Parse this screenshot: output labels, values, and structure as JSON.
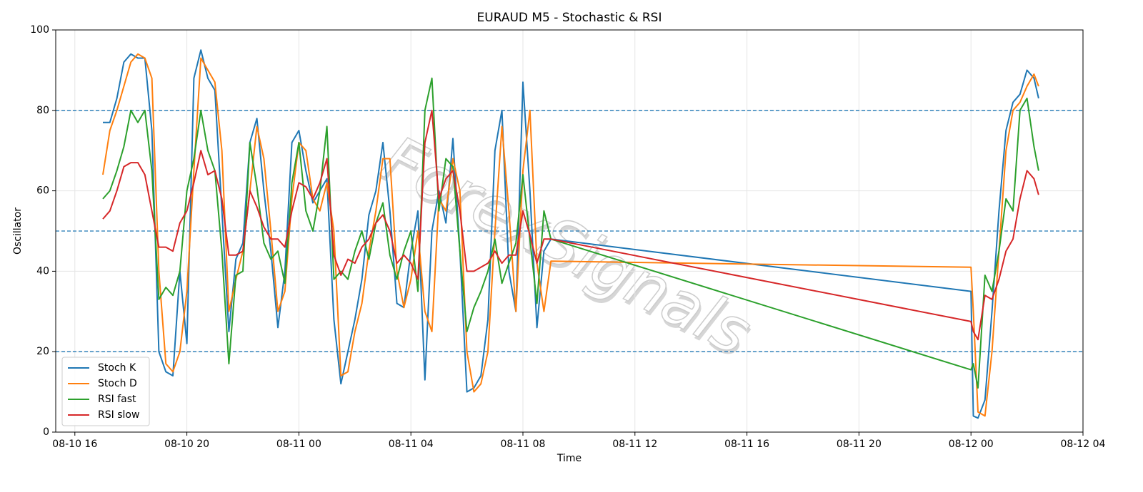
{
  "chart_data": {
    "type": "line",
    "title": "EURAUD M5 - Stochastic & RSI",
    "x_label": "Time",
    "y_label": "Oscillator",
    "watermark": "ForexSignals",
    "x": [
      "08-10 17:00",
      "08-10 17:15",
      "08-10 17:30",
      "08-10 17:45",
      "08-10 18:00",
      "08-10 18:15",
      "08-10 18:30",
      "08-10 18:45",
      "08-10 19:00",
      "08-10 19:15",
      "08-10 19:30",
      "08-10 19:45",
      "08-10 20:00",
      "08-10 20:15",
      "08-10 20:30",
      "08-10 20:45",
      "08-10 21:00",
      "08-10 21:15",
      "08-10 21:30",
      "08-10 21:45",
      "08-10 22:00",
      "08-10 22:15",
      "08-10 22:30",
      "08-10 22:45",
      "08-10 23:00",
      "08-10 23:15",
      "08-10 23:30",
      "08-10 23:45",
      "08-11 00:00",
      "08-11 00:15",
      "08-11 00:30",
      "08-11 00:45",
      "08-11 01:00",
      "08-11 01:15",
      "08-11 01:30",
      "08-11 01:45",
      "08-11 02:00",
      "08-11 02:15",
      "08-11 02:30",
      "08-11 02:45",
      "08-11 03:00",
      "08-11 03:15",
      "08-11 03:30",
      "08-11 03:45",
      "08-11 04:00",
      "08-11 04:15",
      "08-11 04:30",
      "08-11 04:45",
      "08-11 05:00",
      "08-11 05:15",
      "08-11 05:30",
      "08-11 05:45",
      "08-11 06:00",
      "08-11 06:15",
      "08-11 06:30",
      "08-11 06:45",
      "08-11 07:00",
      "08-11 07:15",
      "08-11 07:30",
      "08-11 07:45",
      "08-11 08:00",
      "08-11 08:15",
      "08-11 08:30",
      "08-11 08:45",
      "08-11 09:00",
      "08-12 00:00",
      "08-12 00:05",
      "08-12 00:15",
      "08-12 00:30",
      "08-12 00:45",
      "08-12 01:00",
      "08-12 01:15",
      "08-12 01:30",
      "08-12 01:45",
      "08-12 02:00",
      "08-12 02:15",
      "08-12 02:25"
    ],
    "series": [
      {
        "name": "Stoch K",
        "color": "#1f77b4",
        "values": [
          77,
          77,
          83,
          92,
          94,
          93,
          93,
          75,
          20,
          15,
          14,
          40,
          22,
          88,
          95,
          88,
          85,
          55,
          25,
          43,
          47,
          72,
          78,
          60,
          45,
          26,
          40,
          72,
          75,
          65,
          57,
          60,
          63,
          28,
          12,
          20,
          28,
          38,
          54,
          60,
          72,
          55,
          32,
          31,
          45,
          55,
          13,
          50,
          60,
          52,
          73,
          45,
          10,
          11,
          14,
          28,
          70,
          80,
          40,
          30,
          87,
          60,
          26,
          45,
          48,
          35,
          4,
          3.5,
          8,
          30,
          55,
          75,
          82,
          84,
          90,
          88,
          83
        ]
      },
      {
        "name": "Stoch D",
        "color": "#ff7f0e",
        "values": [
          64,
          75,
          80,
          86,
          92,
          94,
          93,
          88,
          40,
          17,
          15,
          20,
          35,
          65,
          93,
          90,
          87,
          70,
          30,
          38,
          45,
          60,
          76,
          68,
          50,
          30,
          35,
          58,
          72,
          70,
          58,
          55,
          62,
          50,
          14,
          15,
          25,
          32,
          45,
          55,
          68,
          68,
          40,
          31,
          38,
          50,
          30,
          25,
          58,
          55,
          68,
          60,
          20,
          10,
          12,
          20,
          50,
          76,
          55,
          30,
          65,
          80,
          42,
          30,
          42.5,
          41,
          30,
          5,
          4,
          20,
          45,
          70,
          80,
          82,
          86,
          89,
          86
        ]
      },
      {
        "name": "RSI fast",
        "color": "#2ca02c",
        "values": [
          58,
          60,
          65,
          71,
          80,
          77,
          80,
          65,
          33,
          36,
          34,
          40,
          60,
          68,
          80,
          70,
          65,
          45,
          17,
          39,
          40,
          72,
          61,
          47,
          43,
          45,
          37,
          62,
          72,
          55,
          50,
          60,
          76,
          38,
          40,
          38,
          45,
          50,
          43,
          52,
          57,
          44,
          38,
          45,
          50,
          35,
          80,
          88,
          55,
          68,
          66,
          45,
          25,
          31,
          35,
          40,
          48,
          37,
          42,
          47,
          64,
          48,
          32,
          55,
          48,
          15.5,
          17,
          11,
          39,
          35,
          45,
          58,
          55,
          80,
          83,
          71,
          65
        ]
      },
      {
        "name": "RSI slow",
        "color": "#d62728",
        "values": [
          53,
          55,
          60,
          66,
          67,
          67,
          64,
          55,
          46,
          46,
          45,
          52,
          55,
          62,
          70,
          64,
          65,
          58,
          44,
          44,
          45,
          60,
          56,
          51,
          48,
          48,
          46,
          55,
          62,
          61,
          58,
          62,
          68,
          44,
          39,
          43,
          42,
          46,
          48,
          52,
          54,
          50,
          42,
          44,
          42,
          38,
          72,
          80,
          58,
          63,
          65,
          55,
          40,
          40,
          41,
          42,
          45,
          42,
          44,
          44,
          55,
          49,
          42,
          48,
          48,
          27.5,
          25,
          23,
          34,
          33,
          38,
          45,
          48,
          58,
          65,
          63,
          59
        ]
      }
    ],
    "xlim": [
      "08-10 15:19",
      "08-12 04:00"
    ],
    "xticks": [
      {
        "value": "08-10 16:00",
        "label": "08-10 16"
      },
      {
        "value": "08-10 20:00",
        "label": "08-10 20"
      },
      {
        "value": "08-11 00:00",
        "label": "08-11 00"
      },
      {
        "value": "08-11 04:00",
        "label": "08-11 04"
      },
      {
        "value": "08-11 08:00",
        "label": "08-11 08"
      },
      {
        "value": "08-11 12:00",
        "label": "08-11 12"
      },
      {
        "value": "08-11 16:00",
        "label": "08-11 16"
      },
      {
        "value": "08-11 20:00",
        "label": "08-11 20"
      },
      {
        "value": "08-12 00:00",
        "label": "08-12 00"
      },
      {
        "value": "08-12 04:00",
        "label": "08-12 04"
      }
    ],
    "ylim": [
      0,
      100
    ],
    "yticks": [
      0,
      20,
      40,
      60,
      80,
      100
    ],
    "hlines": [
      80,
      50,
      20
    ],
    "hline_color": "#1f77b4",
    "grid": true,
    "legend": "lower left"
  }
}
